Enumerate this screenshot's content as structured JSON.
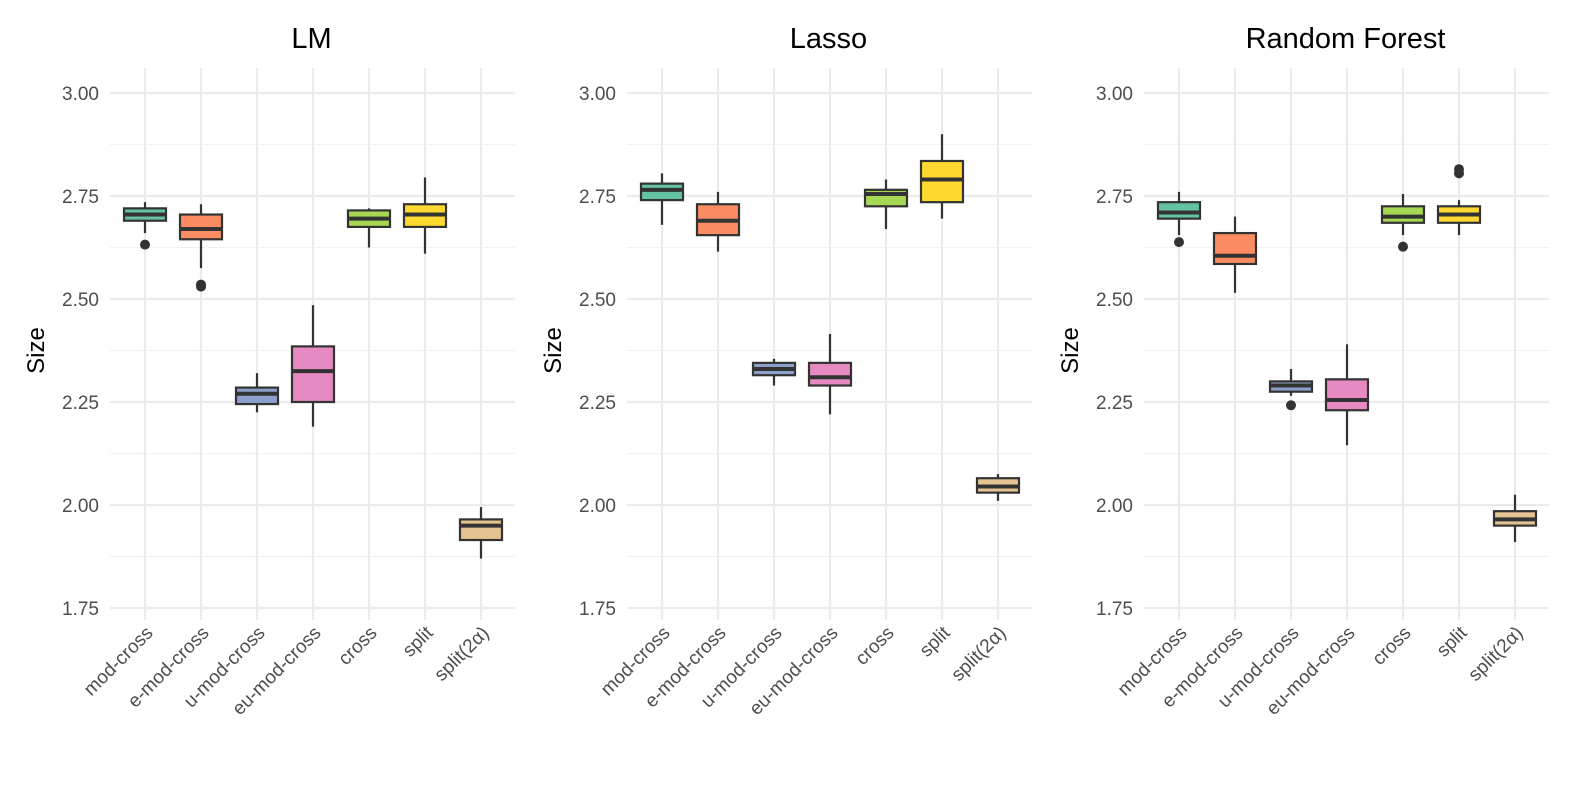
{
  "chart_data": [
    {
      "type": "box",
      "title": "LM",
      "xlabel": "",
      "ylabel": "Size",
      "ylim": [
        1.75,
        3.0
      ],
      "yticks": [
        "3.00",
        "2.75",
        "2.50",
        "2.25",
        "2.00",
        "1.75"
      ],
      "categories": [
        "mod-cross",
        "e-mod-cross",
        "u-mod-cross",
        "eu-mod-cross",
        "cross",
        "split",
        "split(2α)"
      ],
      "boxes": [
        {
          "category": "mod-cross",
          "min": 2.66,
          "q1": 2.69,
          "median": 2.705,
          "q3": 2.72,
          "max": 2.735,
          "outliers": [
            2.632
          ]
        },
        {
          "category": "e-mod-cross",
          "min": 2.575,
          "q1": 2.645,
          "median": 2.67,
          "q3": 2.705,
          "max": 2.73,
          "outliers": [
            2.535,
            2.53
          ]
        },
        {
          "category": "u-mod-cross",
          "min": 2.225,
          "q1": 2.245,
          "median": 2.27,
          "q3": 2.285,
          "max": 2.32,
          "outliers": []
        },
        {
          "category": "eu-mod-cross",
          "min": 2.19,
          "q1": 2.25,
          "median": 2.325,
          "q3": 2.385,
          "max": 2.485,
          "outliers": []
        },
        {
          "category": "cross",
          "min": 2.625,
          "q1": 2.675,
          "median": 2.695,
          "q3": 2.715,
          "max": 2.72,
          "outliers": []
        },
        {
          "category": "split",
          "min": 2.61,
          "q1": 2.675,
          "median": 2.705,
          "q3": 2.73,
          "max": 2.795,
          "outliers": []
        },
        {
          "category": "split(2α)",
          "min": 1.87,
          "q1": 1.915,
          "median": 1.95,
          "q3": 1.965,
          "max": 1.995,
          "outliers": []
        }
      ]
    },
    {
      "type": "box",
      "title": "Lasso",
      "xlabel": "",
      "ylabel": "Size",
      "ylim": [
        1.75,
        3.0
      ],
      "yticks": [
        "3.00",
        "2.75",
        "2.50",
        "2.25",
        "2.00",
        "1.75"
      ],
      "categories": [
        "mod-cross",
        "e-mod-cross",
        "u-mod-cross",
        "eu-mod-cross",
        "cross",
        "split",
        "split(2α)"
      ],
      "boxes": [
        {
          "category": "mod-cross",
          "min": 2.68,
          "q1": 2.74,
          "median": 2.765,
          "q3": 2.78,
          "max": 2.805,
          "outliers": []
        },
        {
          "category": "e-mod-cross",
          "min": 2.615,
          "q1": 2.655,
          "median": 2.69,
          "q3": 2.73,
          "max": 2.76,
          "outliers": []
        },
        {
          "category": "u-mod-cross",
          "min": 2.29,
          "q1": 2.315,
          "median": 2.33,
          "q3": 2.345,
          "max": 2.355,
          "outliers": []
        },
        {
          "category": "eu-mod-cross",
          "min": 2.22,
          "q1": 2.29,
          "median": 2.31,
          "q3": 2.345,
          "max": 2.415,
          "outliers": []
        },
        {
          "category": "cross",
          "min": 2.67,
          "q1": 2.725,
          "median": 2.755,
          "q3": 2.765,
          "max": 2.79,
          "outliers": []
        },
        {
          "category": "split",
          "min": 2.695,
          "q1": 2.735,
          "median": 2.79,
          "q3": 2.835,
          "max": 2.9,
          "outliers": []
        },
        {
          "category": "split(2α)",
          "min": 2.01,
          "q1": 2.03,
          "median": 2.045,
          "q3": 2.065,
          "max": 2.075,
          "outliers": []
        }
      ]
    },
    {
      "type": "box",
      "title": "Random Forest",
      "xlabel": "",
      "ylabel": "Size",
      "ylim": [
        1.75,
        3.0
      ],
      "yticks": [
        "3.00",
        "2.75",
        "2.50",
        "2.25",
        "2.00",
        "1.75"
      ],
      "categories": [
        "mod-cross",
        "e-mod-cross",
        "u-mod-cross",
        "eu-mod-cross",
        "cross",
        "split",
        "split(2α)"
      ],
      "boxes": [
        {
          "category": "mod-cross",
          "min": 2.655,
          "q1": 2.695,
          "median": 2.71,
          "q3": 2.735,
          "max": 2.76,
          "outliers": [
            2.638
          ]
        },
        {
          "category": "e-mod-cross",
          "min": 2.515,
          "q1": 2.585,
          "median": 2.605,
          "q3": 2.66,
          "max": 2.7,
          "outliers": []
        },
        {
          "category": "u-mod-cross",
          "min": 2.265,
          "q1": 2.275,
          "median": 2.29,
          "q3": 2.3,
          "max": 2.33,
          "outliers": [
            2.242
          ]
        },
        {
          "category": "eu-mod-cross",
          "min": 2.145,
          "q1": 2.23,
          "median": 2.255,
          "q3": 2.305,
          "max": 2.39,
          "outliers": []
        },
        {
          "category": "cross",
          "min": 2.655,
          "q1": 2.685,
          "median": 2.7,
          "q3": 2.725,
          "max": 2.755,
          "outliers": [
            2.627
          ]
        },
        {
          "category": "split",
          "min": 2.655,
          "q1": 2.685,
          "median": 2.705,
          "q3": 2.725,
          "max": 2.74,
          "outliers": [
            2.815,
            2.805
          ]
        },
        {
          "category": "split(2α)",
          "min": 1.91,
          "q1": 1.95,
          "median": 1.965,
          "q3": 1.985,
          "max": 2.025,
          "outliers": []
        }
      ]
    }
  ],
  "colors": {
    "mod-cross": "#66c2a5",
    "e-mod-cross": "#fc8d62",
    "u-mod-cross": "#8da0cb",
    "eu-mod-cross": "#e78ac3",
    "cross": "#a6d854",
    "split": "#ffd92f",
    "split(2α)": "#e5c494"
  }
}
